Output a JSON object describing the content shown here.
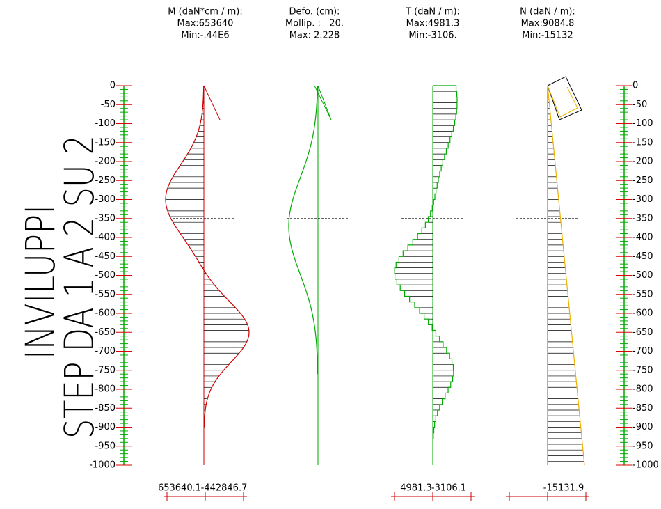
{
  "title": [
    "INVILUPPI",
    "STEP DA 1 A 2 SU 2"
  ],
  "panels": [
    {
      "header": [
        "M (daN*cm / m):",
        "Max:653640",
        "Min:-.44E6"
      ],
      "bottom": [
        "653640.1",
        "-442846.7"
      ]
    },
    {
      "header": [
        "Defo. (cm):",
        "Mollip. :   20.",
        "Max: 2.228"
      ],
      "bottom": []
    },
    {
      "header": [
        "T (daN / m):",
        "Max:4981.3",
        "Min:-3106."
      ],
      "bottom": [
        "4981.3",
        "-3106.1"
      ]
    },
    {
      "header": [
        "N (daN / m):",
        "Max:9084.8",
        "Min:-15132"
      ],
      "bottom": [
        "-15131.9"
      ]
    }
  ],
  "scale": [
    "0",
    "-50",
    "-100",
    "-150",
    "-200",
    "-250",
    "-300",
    "-350",
    "-400",
    "-450",
    "-500",
    "-550",
    "-600",
    "-650",
    "-700",
    "-750",
    "-800",
    "-850",
    "-900",
    "-950",
    "-1000"
  ]
}
